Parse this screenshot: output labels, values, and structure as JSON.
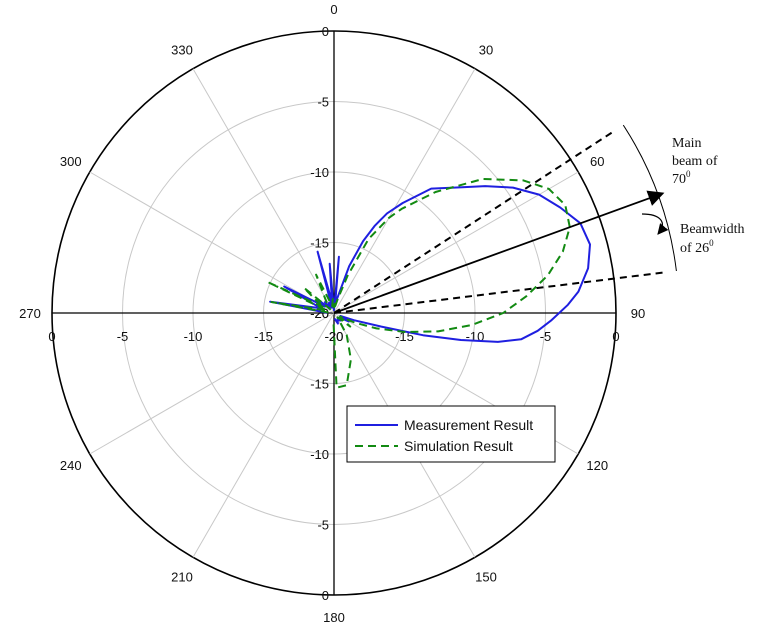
{
  "chart_data": {
    "type": "polar-line",
    "r_ticks": [
      "0",
      "-5",
      "-10",
      "-15",
      "-20"
    ],
    "r_range": [
      -20,
      0
    ],
    "angle_tick_labels": [
      "0",
      "30",
      "60",
      "90",
      "120",
      "150",
      "180",
      "210",
      "240",
      "270",
      "300",
      "330"
    ],
    "angle_values": [
      0,
      30,
      60,
      90,
      120,
      150,
      180,
      210,
      240,
      270,
      300,
      330
    ],
    "grid": true,
    "legend_position": "bottom-right",
    "series": [
      {
        "name": "Measurement Result",
        "color": "#1f1fe0",
        "style": "solid",
        "theta": [
          -88,
          -80,
          -70,
          -62,
          -55,
          -50,
          -45,
          -40,
          -33,
          -27,
          -20,
          -15,
          -10,
          -5,
          0,
          5,
          8,
          12,
          18,
          22,
          25,
          28,
          32,
          38,
          45,
          50,
          55,
          60,
          65,
          70,
          75,
          80,
          85,
          88,
          92,
          95,
          98,
          100,
          102,
          104,
          106,
          110,
          115,
          120,
          130,
          140,
          150,
          160,
          175
        ],
        "r": [
          -19.5,
          -15.4,
          -19,
          -16,
          -19.2,
          -18.5,
          -19.6,
          -19,
          -19.5,
          -19.2,
          -19.6,
          -15.5,
          -19.2,
          -16.5,
          -19.8,
          -16,
          -19.5,
          -19,
          -16.5,
          -14.5,
          -13.2,
          -12,
          -10.8,
          -8.8,
          -7.4,
          -6,
          -4.5,
          -3.2,
          -2.3,
          -1.4,
          -1.2,
          -1.7,
          -2.6,
          -3.4,
          -4.6,
          -5.5,
          -6.6,
          -8.2,
          -10.8,
          -13.5,
          -16.5,
          -18.5,
          -19.5,
          -18.8,
          -19.5,
          -19.3,
          -19.5,
          -19.2,
          -19.6
        ]
      },
      {
        "name": "Simulation Result",
        "color": "#128a12",
        "style": "dashed",
        "theta": [
          -85,
          -80,
          -70,
          -65,
          -60,
          -55,
          -50,
          -45,
          -35,
          -25,
          -15,
          -5,
          0,
          5,
          10,
          15,
          20,
          25,
          30,
          33,
          40,
          48,
          55,
          60,
          65,
          70,
          75,
          80,
          85,
          90,
          95,
          100,
          105,
          110,
          115,
          120,
          130,
          140,
          150,
          160,
          170,
          178,
          185
        ],
        "r": [
          -19.6,
          -15.5,
          -19.5,
          -14.8,
          -19.2,
          -18.5,
          -17.2,
          -19.6,
          -19.1,
          -17,
          -19.5,
          -19,
          -19.6,
          -19.2,
          -19.5,
          -19,
          -17.2,
          -14.2,
          -12.2,
          -11.2,
          -8.8,
          -5.8,
          -3.6,
          -2.4,
          -1.9,
          -2.2,
          -3.2,
          -4.6,
          -6.3,
          -8,
          -10.2,
          -12.5,
          -14.8,
          -16.8,
          -18.4,
          -19.5,
          -18.5,
          -19.6,
          -18.2,
          -16.5,
          -14.8,
          -14.7,
          -19.5
        ]
      }
    ]
  },
  "annotations": {
    "main_beam_line1": "Main",
    "main_beam_line2": "beam of",
    "main_beam_value": "70",
    "main_beam_sup": "0",
    "beamwidth_line1": "Beamwidth",
    "beamwidth_value": "of 26",
    "beamwidth_sup": "0"
  },
  "legend": {
    "measurement": "Measurement Result",
    "simulation": "Simulation Result"
  }
}
